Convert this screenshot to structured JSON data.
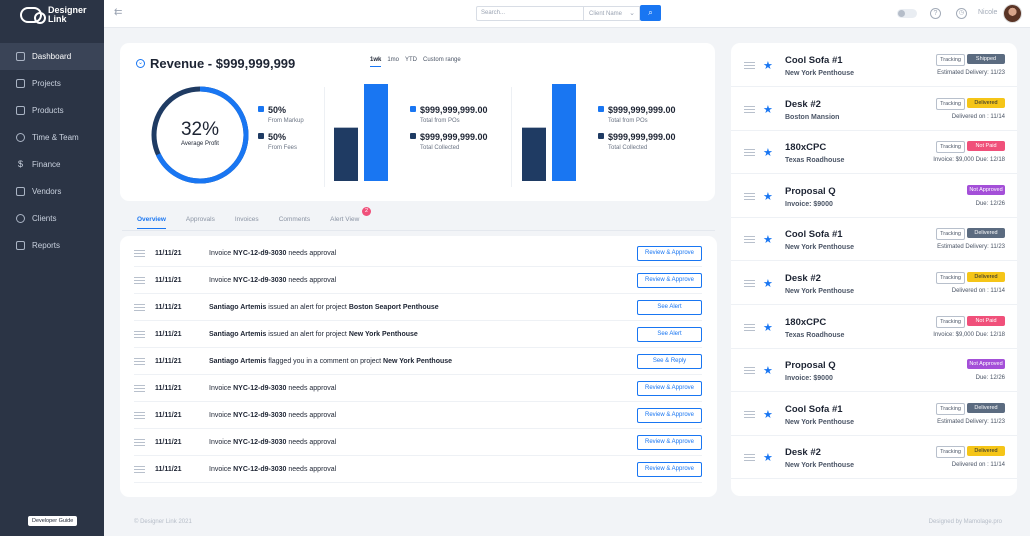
{
  "brand": {
    "name": "Designer Link"
  },
  "sidebar": {
    "items": [
      {
        "label": "Dashboard"
      },
      {
        "label": "Projects"
      },
      {
        "label": "Products"
      },
      {
        "label": "Time & Team"
      },
      {
        "label": "Finance"
      },
      {
        "label": "Vendors"
      },
      {
        "label": "Clients"
      },
      {
        "label": "Reports"
      }
    ],
    "dev_guide": "Developer Guide"
  },
  "topbar": {
    "search_placeholder": "Search...",
    "select_value": "Client Name",
    "user_name": "Nicole"
  },
  "revenue": {
    "title": "Revenue - $999,999,999",
    "periods": [
      "1wk",
      "1mo",
      "YTD",
      "Custom range"
    ],
    "active_period": "1wk",
    "donut": {
      "percent_text": "32%",
      "percent": 32,
      "label": "Average Profit"
    },
    "split": [
      {
        "value": "50%",
        "label": "From Markup",
        "color": "#1976f2"
      },
      {
        "value": "50%",
        "label": "From Fees",
        "color": "#1f3b63"
      }
    ],
    "panels": [
      {
        "items": [
          {
            "value": "$999,999,999.00",
            "label": "Total from POs",
            "color": "#1976f2"
          },
          {
            "value": "$999,999,999.00",
            "label": "Total Collected",
            "color": "#1f3b63"
          }
        ]
      },
      {
        "items": [
          {
            "value": "$999,999,999.00",
            "label": "Total from POs",
            "color": "#1976f2"
          },
          {
            "value": "$999,999,999.00",
            "label": "Total Collected",
            "color": "#1f3b63"
          }
        ]
      }
    ]
  },
  "chart_data": [
    {
      "type": "bar",
      "categories": [
        "Total Collected",
        "Total from POs"
      ],
      "values": [
        0.55,
        1.0
      ],
      "colors": [
        "#1f3b63",
        "#1976f2"
      ]
    },
    {
      "type": "bar",
      "categories": [
        "Total Collected",
        "Total from POs"
      ],
      "values": [
        0.55,
        1.0
      ],
      "colors": [
        "#1f3b63",
        "#1976f2"
      ]
    }
  ],
  "tabs": {
    "items": [
      "Overview",
      "Approvals",
      "Invoices",
      "Comments",
      "Alert View"
    ],
    "active": "Overview",
    "alert_count": "2"
  },
  "activity": [
    {
      "date": "11/11/21",
      "parts": [
        [
          "Invoice ",
          false
        ],
        [
          "NYC-12-d9-3030",
          true
        ],
        [
          " needs approval",
          false
        ]
      ],
      "action": "Review & Approve"
    },
    {
      "date": "11/11/21",
      "parts": [
        [
          "Invoice ",
          false
        ],
        [
          "NYC-12-d9-3030",
          true
        ],
        [
          " needs approval",
          false
        ]
      ],
      "action": "Review & Approve"
    },
    {
      "date": "11/11/21",
      "parts": [
        [
          "Santiago Artemis",
          true
        ],
        [
          " issued an alert for project ",
          false
        ],
        [
          "Boston Seaport Penthouse",
          true
        ]
      ],
      "action": "See Alert"
    },
    {
      "date": "11/11/21",
      "parts": [
        [
          "Santiago Artemis",
          true
        ],
        [
          " issued an alert for project ",
          false
        ],
        [
          "New York Penthouse",
          true
        ]
      ],
      "action": "See Alert"
    },
    {
      "date": "11/11/21",
      "parts": [
        [
          "Santiago Artemis",
          true
        ],
        [
          " flagged you in a comment on project ",
          false
        ],
        [
          "New York Penthouse",
          true
        ]
      ],
      "action": "See & Reply"
    },
    {
      "date": "11/11/21",
      "parts": [
        [
          "Invoice ",
          false
        ],
        [
          "NYC-12-d9-3030",
          true
        ],
        [
          " needs approval",
          false
        ]
      ],
      "action": "Review & Approve"
    },
    {
      "date": "11/11/21",
      "parts": [
        [
          "Invoice ",
          false
        ],
        [
          "NYC-12-d9-3030",
          true
        ],
        [
          " needs approval",
          false
        ]
      ],
      "action": "Review & Approve"
    },
    {
      "date": "11/11/21",
      "parts": [
        [
          "Invoice ",
          false
        ],
        [
          "NYC-12-d9-3030",
          true
        ],
        [
          " needs approval",
          false
        ]
      ],
      "action": "Review & Approve"
    },
    {
      "date": "11/11/21",
      "parts": [
        [
          "Invoice ",
          false
        ],
        [
          "NYC-12-d9-3030",
          true
        ],
        [
          " needs approval",
          false
        ]
      ],
      "action": "Review & Approve"
    }
  ],
  "orders": [
    {
      "title": "Cool Sofa #1",
      "sub": "New York Penthouse",
      "tracking": "Tracking",
      "status": "Shipped",
      "status_color": "#5b6b80",
      "status_text_color": "#ffffff",
      "meta": "Estimated Delivery: 11/23"
    },
    {
      "title": "Desk #2",
      "sub": "Boston Mansion",
      "tracking": "Tracking",
      "status": "Delivered",
      "status_color": "#f5c518",
      "status_text_color": "#1d2433",
      "meta": "Delivered on : 11/14"
    },
    {
      "title": "180xCPC",
      "sub": "Texas Roadhouse",
      "tracking": "Tracking",
      "status": "Not Paid",
      "status_color": "#f0507a",
      "status_text_color": "#ffffff",
      "meta": "Invoice: $9,000    Due: 12/18"
    },
    {
      "title": "Proposal Q",
      "sub": "Invoice: $9000",
      "tracking": "",
      "status": "Not Approved",
      "status_color": "#a44fd8",
      "status_text_color": "#ffffff",
      "meta": "Due: 12/26"
    },
    {
      "title": "Cool Sofa #1",
      "sub": "New York Penthouse",
      "tracking": "Tracking",
      "status": "Delivered",
      "status_color": "#5b6b80",
      "status_text_color": "#ffffff",
      "meta": "Estimated Delivery: 11/23"
    },
    {
      "title": "Desk #2",
      "sub": "New York Penthouse",
      "tracking": "Tracking",
      "status": "Delivered",
      "status_color": "#f5c518",
      "status_text_color": "#1d2433",
      "meta": "Delivered on : 11/14"
    },
    {
      "title": "180xCPC",
      "sub": "Texas Roadhouse",
      "tracking": "Tracking",
      "status": "Not Paid",
      "status_color": "#f0507a",
      "status_text_color": "#ffffff",
      "meta": "Invoice: $9,000    Due: 12/18"
    },
    {
      "title": "Proposal Q",
      "sub": "Invoice: $9000",
      "tracking": "",
      "status": "Not Approved",
      "status_color": "#a44fd8",
      "status_text_color": "#ffffff",
      "meta": "Due: 12/26"
    },
    {
      "title": "Cool Sofa #1",
      "sub": "New York Penthouse",
      "tracking": "Tracking",
      "status": "Delivered",
      "status_color": "#5b6b80",
      "status_text_color": "#ffffff",
      "meta": "Estimated Delivery: 11/23"
    },
    {
      "title": "Desk #2",
      "sub": "New York Penthouse",
      "tracking": "Tracking",
      "status": "Delivered",
      "status_color": "#f5c518",
      "status_text_color": "#1d2433",
      "meta": "Delivered on : 11/14"
    }
  ],
  "footer": {
    "left": "© Designer Link 2021",
    "right": "Designed by Mamolage.pro"
  }
}
